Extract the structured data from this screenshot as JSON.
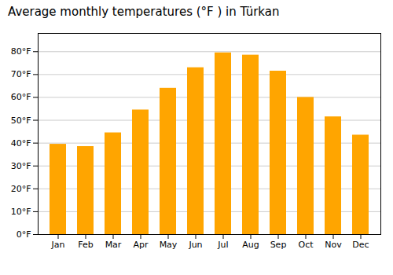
{
  "chart_data": {
    "type": "bar",
    "title": "Average monthly temperatures (°F ) in Türkan",
    "categories": [
      "Jan",
      "Feb",
      "Mar",
      "Apr",
      "May",
      "Jun",
      "Jul",
      "Aug",
      "Sep",
      "Oct",
      "Nov",
      "Dec"
    ],
    "values": [
      39.5,
      38.5,
      44.5,
      54.5,
      64.0,
      73.0,
      79.5,
      78.5,
      71.5,
      60.0,
      51.5,
      43.5
    ],
    "color": "#FFA500",
    "ylim": [
      0,
      88
    ],
    "yticks": [
      {
        "value": 0,
        "label": "0°F"
      },
      {
        "value": 10,
        "label": "10°F"
      },
      {
        "value": 20,
        "label": "20°F"
      },
      {
        "value": 30,
        "label": "30°F"
      },
      {
        "value": 40,
        "label": "40°F"
      },
      {
        "value": 50,
        "label": "50°F"
      },
      {
        "value": 60,
        "label": "60°F"
      },
      {
        "value": 70,
        "label": "70°F"
      },
      {
        "value": 80,
        "label": "80°F"
      }
    ],
    "grid": true
  }
}
